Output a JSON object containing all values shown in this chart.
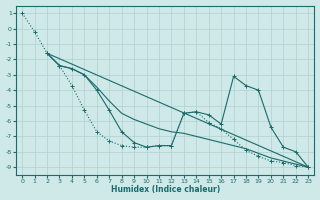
{
  "background_color": "#cfe8e8",
  "grid_color": "#b0d0d0",
  "line_color": "#1a6b6b",
  "xlabel": "Humidex (Indice chaleur)",
  "xlim": [
    -0.5,
    23.5
  ],
  "ylim": [
    -9.5,
    1.5
  ],
  "yticks": [
    1,
    0,
    -1,
    -2,
    -3,
    -4,
    -5,
    -6,
    -7,
    -8,
    -9
  ],
  "xticks": [
    0,
    1,
    2,
    3,
    4,
    5,
    6,
    7,
    8,
    9,
    10,
    11,
    12,
    13,
    14,
    15,
    16,
    17,
    18,
    19,
    20,
    21,
    22,
    23
  ],
  "series": [
    {
      "x": [
        0,
        1,
        2,
        3,
        4,
        5,
        6,
        7,
        8,
        9,
        10,
        11,
        12,
        13,
        14,
        15,
        16,
        17,
        18,
        19,
        20,
        21,
        22,
        23
      ],
      "y": [
        1.0,
        -0.2,
        -1.6,
        -2.4,
        -3.7,
        -5.3,
        -6.7,
        -7.3,
        -7.6,
        -7.7,
        -7.7,
        -7.6,
        -7.6,
        -5.5,
        -5.4,
        -6.1,
        -6.5,
        -7.2,
        -7.9,
        -8.3,
        -8.6,
        -8.7,
        -8.9,
        -9.0
      ],
      "marker": true,
      "dotted": true
    },
    {
      "x": [
        2,
        3,
        4,
        5,
        6,
        7,
        8,
        9,
        10,
        11,
        12,
        13,
        14,
        15,
        16,
        17,
        18,
        19,
        20,
        21,
        22,
        23
      ],
      "y": [
        -1.6,
        -2.4,
        -2.6,
        -3.0,
        -3.8,
        -4.7,
        -5.5,
        -5.9,
        -6.2,
        -6.5,
        -6.7,
        -6.8,
        -7.0,
        -7.2,
        -7.4,
        -7.6,
        -7.8,
        -8.1,
        -8.4,
        -8.6,
        -8.8,
        -9.0
      ],
      "marker": false,
      "dotted": false
    },
    {
      "x": [
        2,
        3,
        4,
        5,
        6,
        7,
        8,
        9,
        10,
        11,
        12,
        13,
        14,
        15,
        16,
        17,
        18,
        19,
        20,
        21,
        22,
        23
      ],
      "y": [
        -1.6,
        -2.4,
        -2.6,
        -3.0,
        -4.0,
        -5.3,
        -6.7,
        -7.4,
        -7.7,
        -7.6,
        -7.6,
        -5.5,
        -5.4,
        -5.6,
        -6.2,
        -3.1,
        -3.7,
        -4.0,
        -6.4,
        -7.7,
        -8.0,
        -9.0
      ],
      "marker": true,
      "dotted": false
    },
    {
      "x": [
        2,
        23
      ],
      "y": [
        -1.6,
        -9.0
      ],
      "marker": false,
      "dotted": false
    }
  ]
}
